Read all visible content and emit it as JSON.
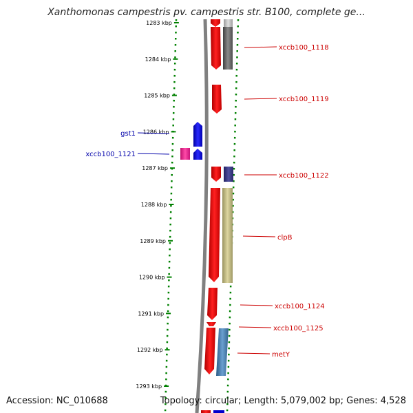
{
  "title": "Xanthomonas campestris pv. campestris str. B100, complete ge...",
  "footer": {
    "accession": "Accession: NC_010688",
    "topology": "Topology: circular; Length: 5,079,002 bp; Genes: 4,528"
  },
  "ticks": [
    "1283 kbp",
    "1284 kbp",
    "1285 kbp",
    "1286 kbp",
    "1287 kbp",
    "1288 kbp",
    "1289 kbp",
    "1290 kbp",
    "1291 kbp",
    "1292 kbp",
    "1293 kbp"
  ],
  "colors": {
    "forward": "#ff0000",
    "reverse_gene": "#0000ee",
    "reverse_label": "#0000aa",
    "forward_label": "#cc0000",
    "pink": "#ff1493",
    "axis": "#008000",
    "backbone": "#808080"
  },
  "gene_labels": {
    "forward": [
      "xccb100_1118",
      "xccb100_1119",
      "xccb100_1122",
      "clpB",
      "xccb100_1124",
      "xccb100_1125",
      "metY"
    ],
    "reverse": [
      "gst1",
      "xccb100_1121"
    ]
  }
}
